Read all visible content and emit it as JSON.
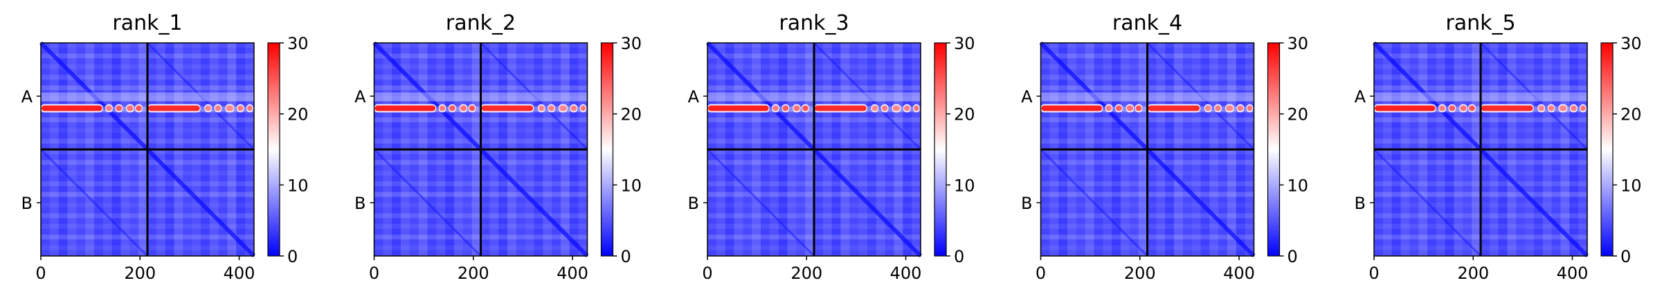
{
  "chart_data": [
    {
      "type": "heatmap",
      "title": "rank_1",
      "x_ticks": [
        0,
        200,
        400
      ],
      "y_ticks": [
        "A",
        "B"
      ],
      "x_range": [
        0,
        430
      ],
      "y_range": [
        0,
        430
      ],
      "chain_boundary": 215,
      "colorbar": {
        "ticks": [
          0,
          10,
          20,
          30
        ],
        "range": [
          0,
          30
        ],
        "colors": [
          "#0000ff",
          "#ffffff",
          "#ff0000"
        ]
      }
    },
    {
      "type": "heatmap",
      "title": "rank_2",
      "x_ticks": [
        0,
        200,
        400
      ],
      "y_ticks": [
        "A",
        "B"
      ],
      "x_range": [
        0,
        430
      ],
      "y_range": [
        0,
        430
      ],
      "chain_boundary": 215,
      "colorbar": {
        "ticks": [
          0,
          10,
          20,
          30
        ],
        "range": [
          0,
          30
        ],
        "colors": [
          "#0000ff",
          "#ffffff",
          "#ff0000"
        ]
      }
    },
    {
      "type": "heatmap",
      "title": "rank_3",
      "x_ticks": [
        0,
        200,
        400
      ],
      "y_ticks": [
        "A",
        "B"
      ],
      "x_range": [
        0,
        430
      ],
      "y_range": [
        0,
        430
      ],
      "chain_boundary": 215,
      "colorbar": {
        "ticks": [
          0,
          10,
          20,
          30
        ],
        "range": [
          0,
          30
        ],
        "colors": [
          "#0000ff",
          "#ffffff",
          "#ff0000"
        ]
      }
    },
    {
      "type": "heatmap",
      "title": "rank_4",
      "x_ticks": [
        0,
        200,
        400
      ],
      "y_ticks": [
        "A",
        "B"
      ],
      "x_range": [
        0,
        430
      ],
      "y_range": [
        0,
        430
      ],
      "chain_boundary": 215,
      "colorbar": {
        "ticks": [
          0,
          10,
          20,
          30
        ],
        "range": [
          0,
          30
        ],
        "colors": [
          "#0000ff",
          "#ffffff",
          "#ff0000"
        ]
      }
    },
    {
      "type": "heatmap",
      "title": "rank_5",
      "x_ticks": [
        0,
        200,
        400
      ],
      "y_ticks": [
        "A",
        "B"
      ],
      "x_range": [
        0,
        430
      ],
      "y_range": [
        0,
        430
      ],
      "chain_boundary": 215,
      "colorbar": {
        "ticks": [
          0,
          10,
          20,
          30
        ],
        "range": [
          0,
          30
        ],
        "colors": [
          "#0000ff",
          "#ffffff",
          "#ff0000"
        ]
      }
    }
  ]
}
